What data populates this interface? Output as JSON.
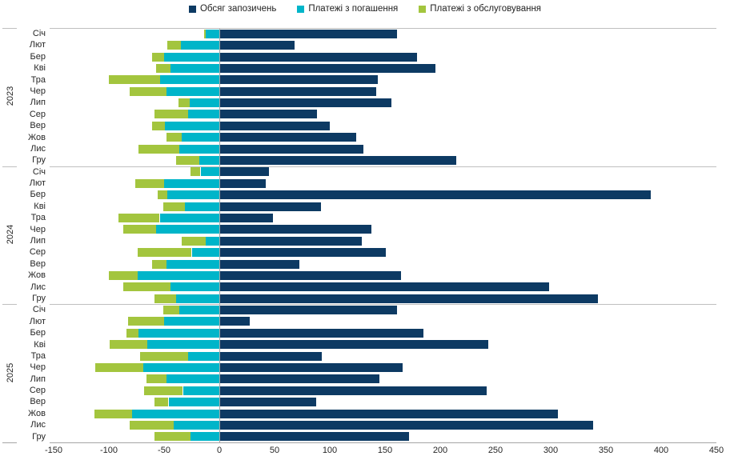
{
  "chart_data": {
    "type": "bar",
    "orientation": "horizontal",
    "diverging": true,
    "title": "",
    "xlabel": "",
    "ylabel": "",
    "xlim": [
      -150,
      450
    ],
    "x_ticks": [
      -150,
      -100,
      -50,
      0,
      50,
      100,
      150,
      200,
      250,
      300,
      350,
      400,
      450
    ],
    "grid": "group-separators-only",
    "legend_position": "top-center",
    "series": [
      {
        "name": "Обсяг запозичень",
        "color": "#0d3a63",
        "direction": "positive"
      },
      {
        "name": "Платежі з погашення",
        "color": "#00b5c9",
        "direction": "negative"
      },
      {
        "name": "Платежі з обслуговування",
        "color": "#a3c53e",
        "direction": "negative"
      }
    ],
    "groups": [
      {
        "year": "2023",
        "rows": [
          {
            "month": "Січ",
            "borrowing": 160,
            "repayment": 12,
            "service": 2
          },
          {
            "month": "Лют",
            "borrowing": 67,
            "repayment": 35,
            "service": 12
          },
          {
            "month": "Бер",
            "borrowing": 178,
            "repayment": 50,
            "service": 11
          },
          {
            "month": "Кві",
            "borrowing": 195,
            "repayment": 44,
            "service": 13
          },
          {
            "month": "Тра",
            "borrowing": 143,
            "repayment": 54,
            "service": 46
          },
          {
            "month": "Чер",
            "borrowing": 141,
            "repayment": 48,
            "service": 33
          },
          {
            "month": "Лип",
            "borrowing": 155,
            "repayment": 27,
            "service": 10
          },
          {
            "month": "Сер",
            "borrowing": 88,
            "repayment": 28,
            "service": 31
          },
          {
            "month": "Вер",
            "borrowing": 99,
            "repayment": 49,
            "service": 12
          },
          {
            "month": "Жов",
            "borrowing": 123,
            "repayment": 34,
            "service": 14
          },
          {
            "month": "Лис",
            "borrowing": 130,
            "repayment": 36,
            "service": 37
          },
          {
            "month": "Гру",
            "borrowing": 214,
            "repayment": 18,
            "service": 21
          }
        ]
      },
      {
        "year": "2024",
        "rows": [
          {
            "month": "Січ",
            "borrowing": 44,
            "repayment": 17,
            "service": 9
          },
          {
            "month": "Лют",
            "borrowing": 41,
            "repayment": 50,
            "service": 26
          },
          {
            "month": "Бер",
            "borrowing": 390,
            "repayment": 47,
            "service": 9
          },
          {
            "month": "Кві",
            "borrowing": 91,
            "repayment": 31,
            "service": 20
          },
          {
            "month": "Тра",
            "borrowing": 48,
            "repayment": 54,
            "service": 37
          },
          {
            "month": "Чер",
            "borrowing": 137,
            "repayment": 57,
            "service": 30
          },
          {
            "month": "Лип",
            "borrowing": 128,
            "repayment": 12,
            "service": 22
          },
          {
            "month": "Сер",
            "borrowing": 150,
            "repayment": 25,
            "service": 49
          },
          {
            "month": "Вер",
            "borrowing": 72,
            "repayment": 48,
            "service": 13
          },
          {
            "month": "Жов",
            "borrowing": 164,
            "repayment": 74,
            "service": 26
          },
          {
            "month": "Лис",
            "borrowing": 298,
            "repayment": 44,
            "service": 43
          },
          {
            "month": "Гру",
            "borrowing": 342,
            "repayment": 39,
            "service": 20
          }
        ]
      },
      {
        "year": "2025",
        "rows": [
          {
            "month": "Січ",
            "borrowing": 160,
            "repayment": 36,
            "service": 15
          },
          {
            "month": "Лют",
            "borrowing": 27,
            "repayment": 50,
            "service": 33
          },
          {
            "month": "Бер",
            "borrowing": 184,
            "repayment": 73,
            "service": 11
          },
          {
            "month": "Кві",
            "borrowing": 243,
            "repayment": 65,
            "service": 34
          },
          {
            "month": "Тра",
            "borrowing": 92,
            "repayment": 28,
            "service": 44
          },
          {
            "month": "Чер",
            "borrowing": 165,
            "repayment": 69,
            "service": 43
          },
          {
            "month": "Лип",
            "borrowing": 144,
            "repayment": 48,
            "service": 18
          },
          {
            "month": "Сер",
            "borrowing": 241,
            "repayment": 33,
            "service": 35
          },
          {
            "month": "Вер",
            "borrowing": 87,
            "repayment": 46,
            "service": 13
          },
          {
            "month": "Жов",
            "borrowing": 306,
            "repayment": 79,
            "service": 34
          },
          {
            "month": "Лис",
            "borrowing": 338,
            "repayment": 41,
            "service": 40
          },
          {
            "month": "Гру",
            "borrowing": 171,
            "repayment": 26,
            "service": 33
          }
        ]
      }
    ]
  },
  "layout_colors": {
    "separator": "#bfbfbf",
    "axis_line": "#a6a6a6",
    "text": "#262626"
  }
}
